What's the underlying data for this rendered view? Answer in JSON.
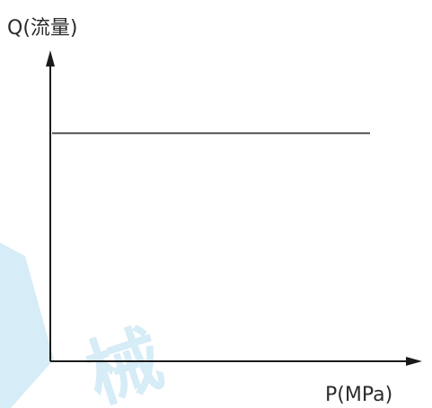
{
  "chart_data": {
    "type": "line",
    "xlabel": "P(MPa)",
    "ylabel": "Q(流量)",
    "x": [
      0,
      1
    ],
    "series": [
      {
        "values": [
          0.77,
          0.77
        ]
      }
    ],
    "xlim": [
      0,
      1.15
    ],
    "ylim": [
      0,
      1.05
    ],
    "grid": false,
    "line_color": "#555555",
    "axis_color": "#1a1a1a"
  },
  "watermark": {
    "text": "械",
    "color": "#d6ecf7"
  }
}
